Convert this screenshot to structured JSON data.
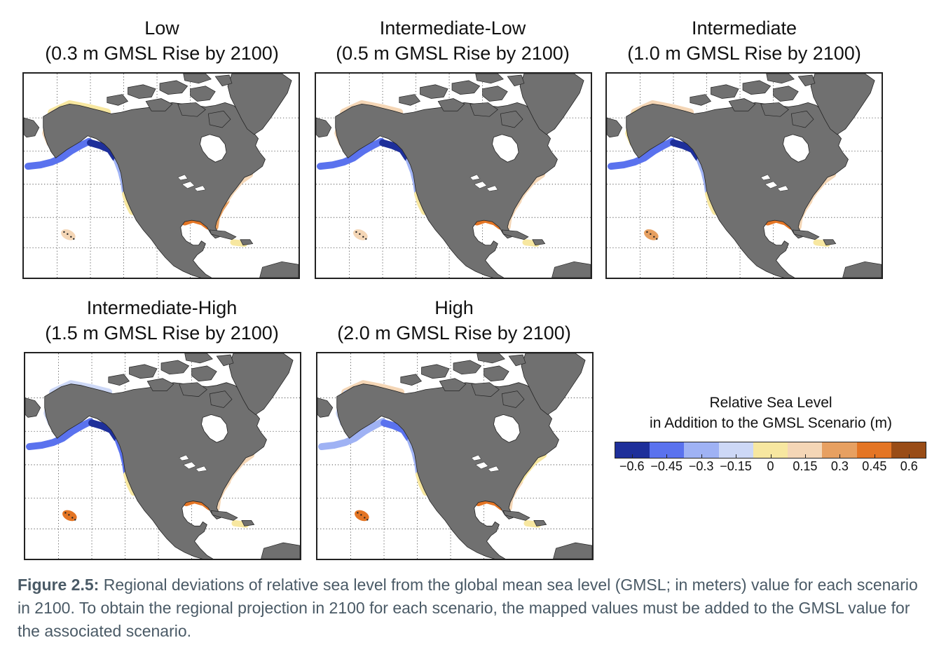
{
  "panels": [
    {
      "title": "Low",
      "subtitle": "(0.3 m GMSL Rise by 2100)",
      "coast": {
        "alaska_n": 0.05,
        "alaska_nw": 0.2,
        "aleutian": -0.45,
        "se_alaska": -0.6,
        "bc_wa": -0.3,
        "ca": 0.05,
        "hawaii": 0.1,
        "gulf": 0.45,
        "se_us": 0.3,
        "ne_us": 0.2,
        "caribbean": 0.05
      }
    },
    {
      "title": "Intermediate-Low",
      "subtitle": "(0.5 m GMSL Rise by 2100)",
      "coast": {
        "alaska_n": 0.1,
        "alaska_nw": 0.2,
        "aleutian": -0.45,
        "se_alaska": -0.6,
        "bc_wa": -0.3,
        "ca": 0.05,
        "hawaii": 0.1,
        "gulf": 0.45,
        "se_us": 0.2,
        "ne_us": 0.2,
        "caribbean": 0.05
      }
    },
    {
      "title": "Intermediate",
      "subtitle": "(1.0 m GMSL Rise by 2100)",
      "coast": {
        "alaska_n": 0.1,
        "alaska_nw": 0.05,
        "aleutian": -0.45,
        "se_alaska": -0.6,
        "bc_wa": -0.3,
        "ca": 0.05,
        "hawaii": 0.3,
        "gulf": 0.45,
        "se_us": 0.15,
        "ne_us": 0.2,
        "caribbean": 0.05
      }
    },
    {
      "title": "Intermediate-High",
      "subtitle": "(1.5 m GMSL Rise by 2100)",
      "coast": {
        "alaska_n": -0.15,
        "alaska_nw": -0.15,
        "aleutian": -0.45,
        "se_alaska": -0.6,
        "bc_wa": -0.45,
        "ca": 0.05,
        "hawaii": 0.45,
        "gulf": 0.45,
        "se_us": 0.15,
        "ne_us": 0.1,
        "caribbean": 0.05
      }
    },
    {
      "title": "High",
      "subtitle": "(2.0 m GMSL Rise by 2100)",
      "coast": {
        "alaska_n": 0.15,
        "alaska_nw": -0.15,
        "aleutian": -0.3,
        "se_alaska": -0.45,
        "bc_wa": -0.3,
        "ca": 0.05,
        "hawaii": 0.45,
        "gulf": 0.45,
        "se_us": 0.1,
        "ne_us": 0.05,
        "caribbean": 0.05
      }
    }
  ],
  "legend": {
    "title_line1": "Relative Sea Level",
    "title_line2": "in Addition to the GMSL Scenario (m)",
    "colors": [
      "#1e2f9a",
      "#5a72ee",
      "#9fb2f4",
      "#cdd8f6",
      "#f7e7a0",
      "#f4d6b6",
      "#e7a061",
      "#e47524",
      "#994c16"
    ],
    "ticks": [
      "−0.6",
      "−0.45",
      "−0.3",
      "−0.15",
      "0",
      "0.15",
      "0.3",
      "0.45",
      "0.6"
    ],
    "tick_values": [
      -0.6,
      -0.45,
      -0.3,
      -0.15,
      0,
      0.15,
      0.3,
      0.45,
      0.6
    ]
  },
  "caption": {
    "label": "Figure 2.5:",
    "text": " Regional deviations of relative sea level from the global mean sea level (GMSL; in meters) value for each scenario in 2100. To obtain the regional projection in 2100 for each scenario, the mapped values must be added to the GMSL value for the associated scenario."
  }
}
